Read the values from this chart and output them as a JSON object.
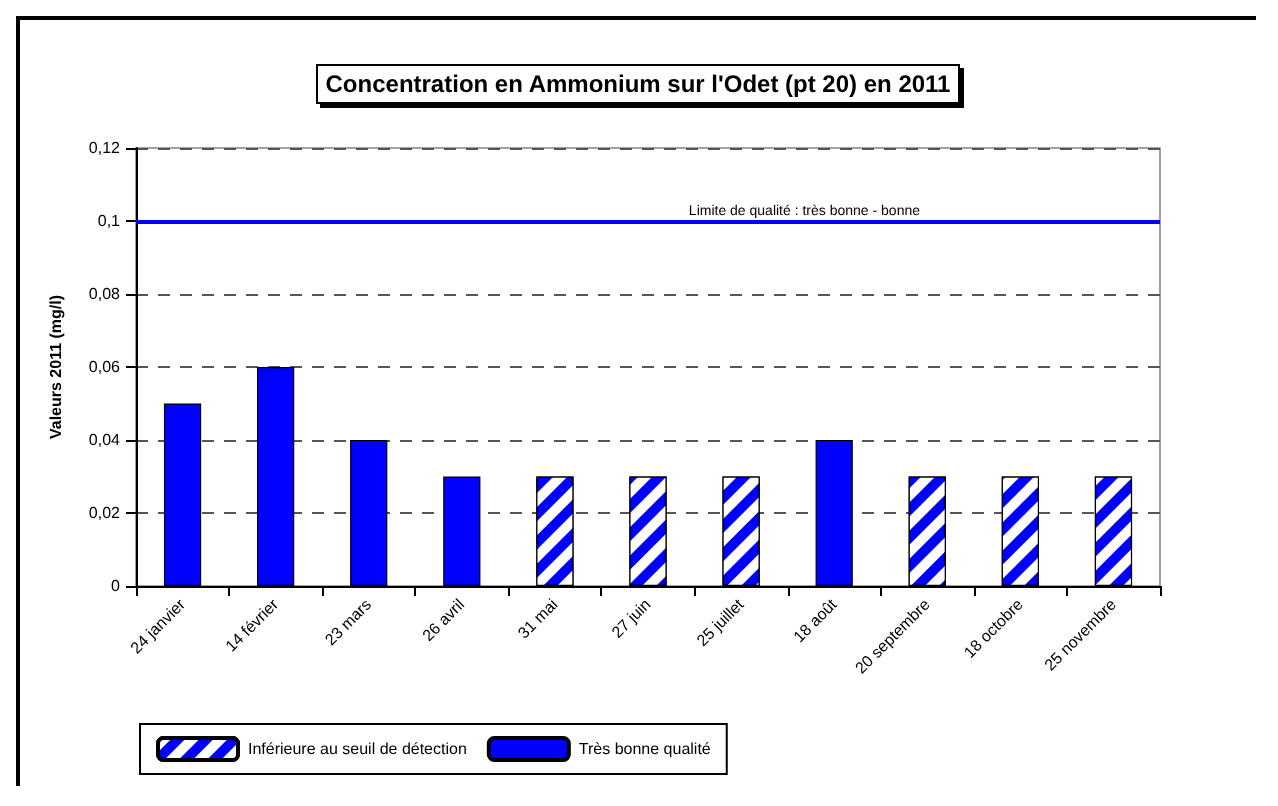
{
  "chart_data": {
    "type": "bar",
    "title": "Concentration en Ammonium sur l'Odet (pt 20) en 2011",
    "ylabel": "Valeurs 2011 (mg/l)",
    "categories": [
      "24 janvier",
      "14 février",
      "23 mars",
      "26 avril",
      "31 mai",
      "27 juin",
      "25 juillet",
      "18 août",
      "20 septembre",
      "18 octobre",
      "25 novembre"
    ],
    "series": [
      {
        "name": "Inférieure au seuil de détection",
        "color": "#0000ff",
        "values": [
          null,
          null,
          null,
          null,
          0.03,
          0.03,
          0.03,
          null,
          0.03,
          0.03,
          0.03
        ]
      },
      {
        "name": "Très bonne qualité",
        "color": "#0000ff",
        "values": [
          0.05,
          0.06,
          0.04,
          0.03,
          null,
          null,
          null,
          0.04,
          null,
          null,
          null
        ]
      }
    ],
    "ylim": [
      0,
      0.12
    ],
    "yticks": [
      0,
      {
        "value": 0.02,
        "label": "0,02"
      },
      {
        "value": 0.04,
        "label": "0,04"
      },
      {
        "value": 0.06,
        "label": "0,06"
      },
      {
        "value": 0.08,
        "label": "0,08"
      },
      {
        "value": 0.1,
        "label": "0,1"
      },
      {
        "value": 0.12,
        "label": "0,12"
      }
    ],
    "grid": "y",
    "legend": "bottom left",
    "ref_lines": [
      {
        "axis": "y",
        "value": 0.1,
        "label": "Limite de qualité : très bonne - bonne",
        "color": "#0000ff",
        "line_style": "solid"
      }
    ]
  }
}
